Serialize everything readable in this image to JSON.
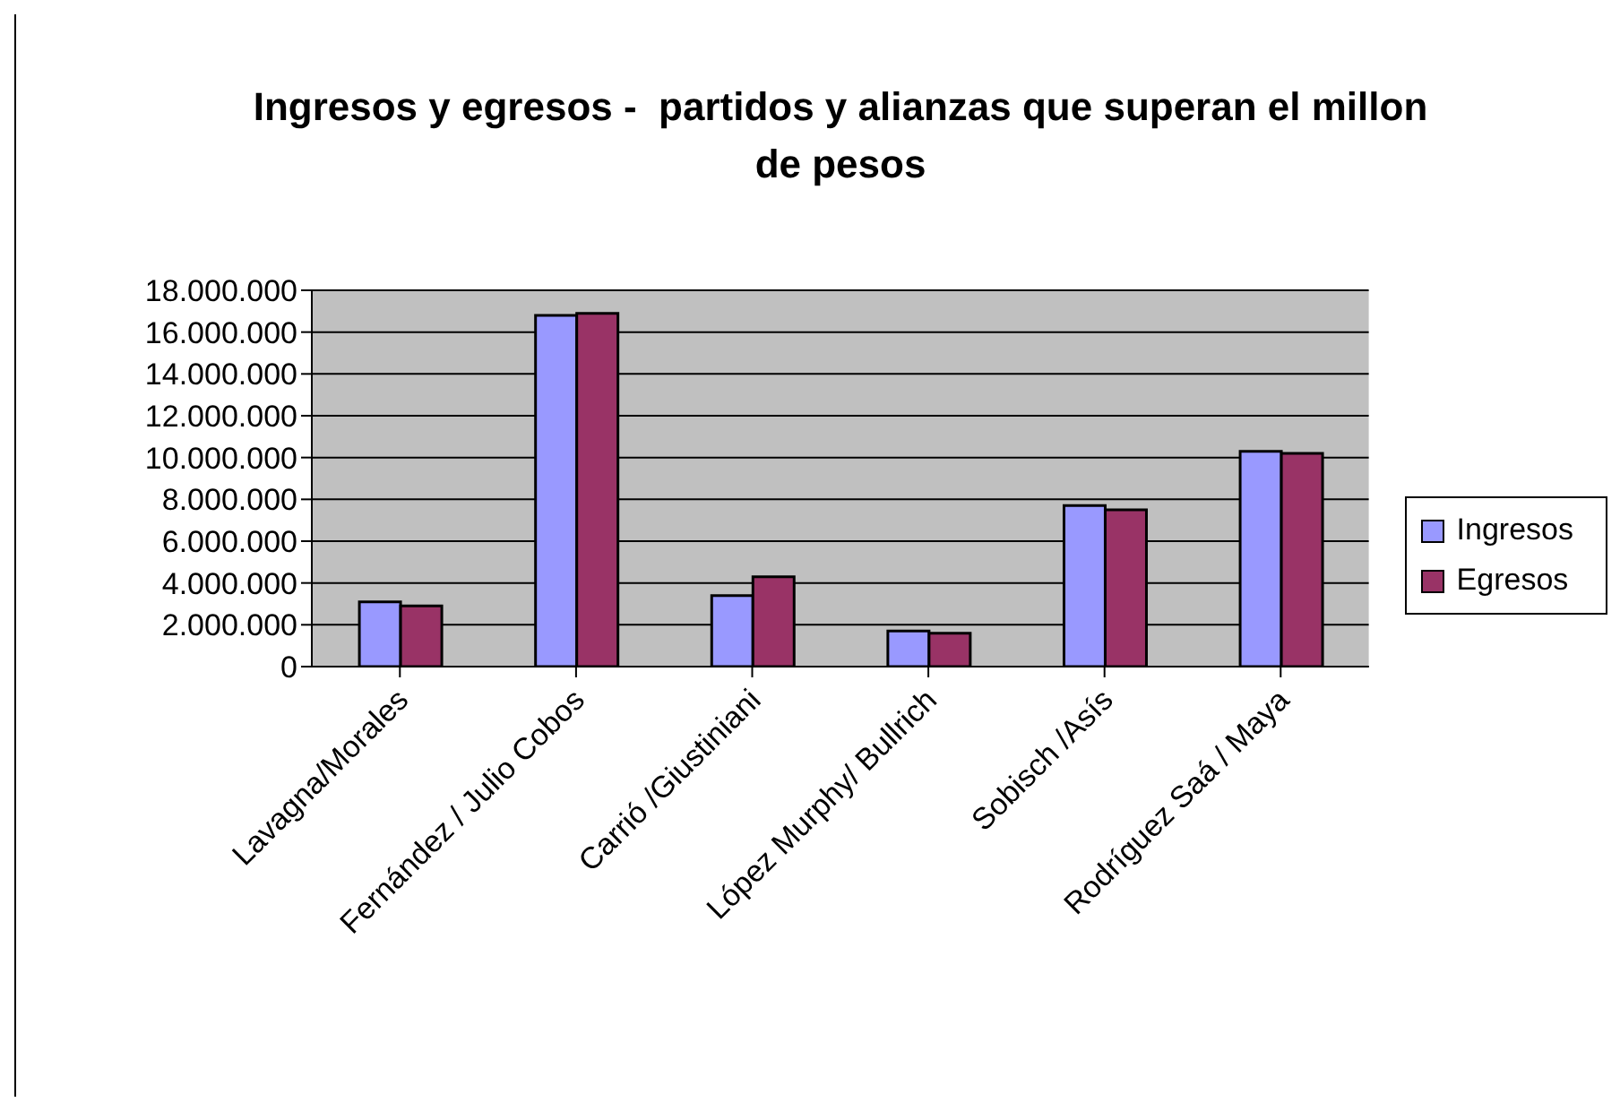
{
  "chart_data": {
    "type": "bar",
    "title": "Ingresos y egresos -  partidos y alianzas que superan el millon de pesos",
    "categories": [
      "Lavagna/Morales",
      "Fernández / Julio Cobos",
      "Carrió /Giustiniani",
      "López Murphy/ Bullrich",
      "Sobisch /Asís",
      "Rodríguez Saá / Maya"
    ],
    "series": [
      {
        "name": "Ingresos",
        "color": "#9999ff",
        "values": [
          3100000,
          16800000,
          3400000,
          1700000,
          7700000,
          10300000
        ]
      },
      {
        "name": "Egresos",
        "color": "#993366",
        "values": [
          2900000,
          16900000,
          4300000,
          1600000,
          7500000,
          10200000
        ]
      }
    ],
    "ylim": [
      0,
      18000000
    ],
    "yticks": [
      0,
      {
        "value": 2000000,
        "label": "2.000.000"
      },
      {
        "value": 4000000,
        "label": "4.000.000"
      },
      {
        "value": 6000000,
        "label": "6.000.000"
      },
      {
        "value": 8000000,
        "label": "8.000.000"
      },
      {
        "value": 10000000,
        "label": "10.000.000"
      },
      {
        "value": 12000000,
        "label": "12.000.000"
      },
      {
        "value": 14000000,
        "label": "14.000.000"
      },
      {
        "value": 16000000,
        "label": "16.000.000"
      },
      {
        "value": 18000000,
        "label": "18.000.000"
      }
    ],
    "grid": "y",
    "legend": "right"
  }
}
